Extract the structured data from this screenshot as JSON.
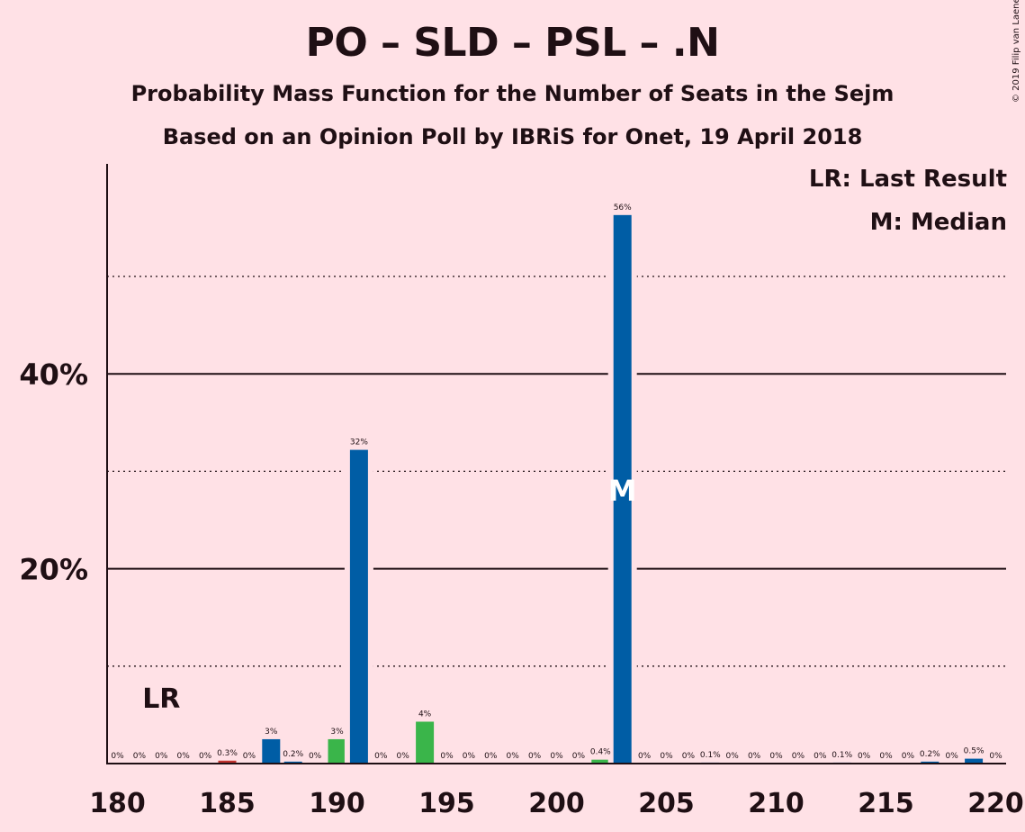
{
  "header": {
    "title": "PO – SLD – PSL – .N",
    "subtitle1": "Probability Mass Function for the Number of Seats in the Sejm",
    "subtitle2": "Based on an Opinion Poll by IBRiS for Onet, 19 April 2018",
    "copyright": "© 2019 Filip van Laenen"
  },
  "legend": {
    "lr": "LR: Last Result",
    "median": "M: Median"
  },
  "colors": {
    "background": "#ffe1e6",
    "blue": "#005da5",
    "green": "#3ab54a",
    "red": "#c0322e"
  },
  "markers": {
    "last_result_label": "LR",
    "last_result_seat": 182,
    "median_label": "M",
    "median_seat": 203
  },
  "chart_data": {
    "type": "bar",
    "title": "PO – SLD – PSL – .N",
    "xlabel": "",
    "ylabel": "",
    "xlim": [
      180,
      220
    ],
    "ylim": [
      0,
      60
    ],
    "x_ticks": [
      180,
      185,
      190,
      195,
      200,
      205,
      210,
      215,
      220
    ],
    "y_ticks_labeled": [
      {
        "value": 20,
        "label": "20%"
      },
      {
        "value": 40,
        "label": "40%"
      }
    ],
    "gridlines_solid": [
      20,
      40
    ],
    "gridlines_dotted": [
      10,
      30,
      50
    ],
    "bars": [
      {
        "seat": 180,
        "value": 0,
        "label": "0%",
        "color": "blue"
      },
      {
        "seat": 181,
        "value": 0,
        "label": "0%",
        "color": "blue"
      },
      {
        "seat": 182,
        "value": 0,
        "label": "0%",
        "color": "blue"
      },
      {
        "seat": 183,
        "value": 0,
        "label": "0%",
        "color": "blue"
      },
      {
        "seat": 184,
        "value": 0,
        "label": "0%",
        "color": "blue"
      },
      {
        "seat": 185,
        "value": 0.3,
        "label": "0.3%",
        "color": "red"
      },
      {
        "seat": 186,
        "value": 0,
        "label": "0%",
        "color": "blue"
      },
      {
        "seat": 187,
        "value": 2.5,
        "label": "3%",
        "color": "blue"
      },
      {
        "seat": 188,
        "value": 0.2,
        "label": "0.2%",
        "color": "blue"
      },
      {
        "seat": 189,
        "value": 0,
        "label": "0%",
        "color": "blue"
      },
      {
        "seat": 190,
        "value": 2.5,
        "label": "3%",
        "color": "green"
      },
      {
        "seat": 191,
        "value": 32.2,
        "label": "32%",
        "color": "blue"
      },
      {
        "seat": 192,
        "value": 0,
        "label": "0%",
        "color": "blue"
      },
      {
        "seat": 193,
        "value": 0,
        "label": "0%",
        "color": "blue"
      },
      {
        "seat": 194,
        "value": 4.3,
        "label": "4%",
        "color": "green"
      },
      {
        "seat": 195,
        "value": 0,
        "label": "0%",
        "color": "blue"
      },
      {
        "seat": 196,
        "value": 0,
        "label": "0%",
        "color": "blue"
      },
      {
        "seat": 197,
        "value": 0,
        "label": "0%",
        "color": "blue"
      },
      {
        "seat": 198,
        "value": 0,
        "label": "0%",
        "color": "blue"
      },
      {
        "seat": 199,
        "value": 0,
        "label": "0%",
        "color": "blue"
      },
      {
        "seat": 200,
        "value": 0,
        "label": "0%",
        "color": "blue"
      },
      {
        "seat": 201,
        "value": 0,
        "label": "0%",
        "color": "blue"
      },
      {
        "seat": 202,
        "value": 0.4,
        "label": "0.4%",
        "color": "green"
      },
      {
        "seat": 203,
        "value": 56.3,
        "label": "56%",
        "color": "blue"
      },
      {
        "seat": 204,
        "value": 0,
        "label": "0%",
        "color": "blue"
      },
      {
        "seat": 205,
        "value": 0,
        "label": "0%",
        "color": "blue"
      },
      {
        "seat": 206,
        "value": 0,
        "label": "0%",
        "color": "blue"
      },
      {
        "seat": 207,
        "value": 0.1,
        "label": "0.1%",
        "color": "blue"
      },
      {
        "seat": 208,
        "value": 0,
        "label": "0%",
        "color": "blue"
      },
      {
        "seat": 209,
        "value": 0,
        "label": "0%",
        "color": "blue"
      },
      {
        "seat": 210,
        "value": 0,
        "label": "0%",
        "color": "blue"
      },
      {
        "seat": 211,
        "value": 0,
        "label": "0%",
        "color": "blue"
      },
      {
        "seat": 212,
        "value": 0,
        "label": "0%",
        "color": "blue"
      },
      {
        "seat": 213,
        "value": 0.1,
        "label": "0.1%",
        "color": "blue"
      },
      {
        "seat": 214,
        "value": 0,
        "label": "0%",
        "color": "blue"
      },
      {
        "seat": 215,
        "value": 0,
        "label": "0%",
        "color": "blue"
      },
      {
        "seat": 216,
        "value": 0,
        "label": "0%",
        "color": "blue"
      },
      {
        "seat": 217,
        "value": 0.2,
        "label": "0.2%",
        "color": "blue"
      },
      {
        "seat": 218,
        "value": 0,
        "label": "0%",
        "color": "blue"
      },
      {
        "seat": 219,
        "value": 0.5,
        "label": "0.5%",
        "color": "blue"
      },
      {
        "seat": 220,
        "value": 0,
        "label": "0%",
        "color": "blue"
      }
    ]
  }
}
